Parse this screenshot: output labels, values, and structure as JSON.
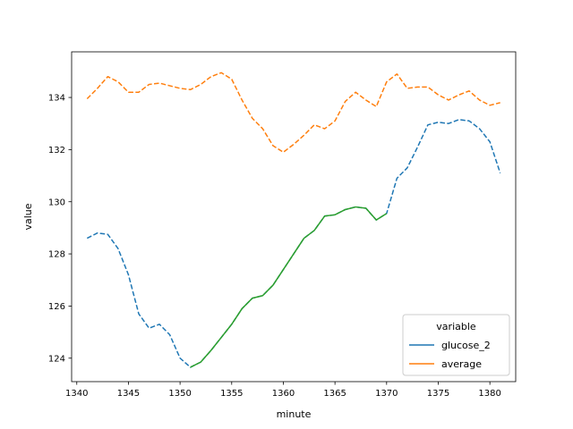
{
  "chart_data": {
    "type": "line",
    "title": "",
    "xlabel": "minute",
    "ylabel": "value",
    "xlim": [
      1339.5,
      1382.5
    ],
    "ylim": [
      123.1,
      135.75
    ],
    "xticks": [
      1340,
      1345,
      1350,
      1355,
      1360,
      1365,
      1370,
      1375,
      1380
    ],
    "yticks": [
      124,
      126,
      128,
      130,
      132,
      134
    ],
    "grid": false,
    "legend": {
      "title": "variable",
      "placement": "lower-right",
      "entries": [
        {
          "name": "glucose_2",
          "color": "#1f77b4"
        },
        {
          "name": "average",
          "color": "#ff7f0e"
        }
      ]
    },
    "series": [
      {
        "name": "glucose_2",
        "color": "#1f77b4",
        "style": "dashed",
        "x": [
          1341,
          1342,
          1343,
          1344,
          1345,
          1346,
          1347,
          1348,
          1349,
          1350,
          1351,
          1352,
          1353,
          1354,
          1355,
          1356,
          1357,
          1358,
          1359,
          1360,
          1361,
          1362,
          1363,
          1364,
          1365,
          1366,
          1367,
          1368,
          1369,
          1370,
          1371,
          1372,
          1373,
          1374,
          1375,
          1376,
          1377,
          1378,
          1379,
          1380,
          1381
        ],
        "values": [
          128.6,
          128.8,
          128.75,
          128.2,
          127.2,
          125.7,
          125.15,
          125.3,
          124.9,
          124.0,
          123.65,
          123.85,
          124.3,
          124.8,
          125.3,
          125.9,
          126.3,
          126.4,
          126.8,
          127.4,
          128.0,
          128.6,
          128.9,
          129.45,
          129.5,
          129.7,
          129.8,
          129.75,
          129.3,
          129.55,
          130.9,
          131.3,
          132.1,
          132.95,
          133.05,
          133.0,
          133.15,
          133.1,
          132.8,
          132.3,
          131.1
        ]
      },
      {
        "name": "average",
        "color": "#ff7f0e",
        "style": "dashed",
        "x": [
          1341,
          1342,
          1343,
          1344,
          1345,
          1346,
          1347,
          1348,
          1349,
          1350,
          1351,
          1352,
          1353,
          1354,
          1355,
          1356,
          1357,
          1358,
          1359,
          1360,
          1361,
          1362,
          1363,
          1364,
          1365,
          1366,
          1367,
          1368,
          1369,
          1370,
          1371,
          1372,
          1373,
          1374,
          1375,
          1376,
          1377,
          1378,
          1379,
          1380,
          1381
        ],
        "values": [
          133.95,
          134.35,
          134.8,
          134.6,
          134.2,
          134.2,
          134.5,
          134.55,
          134.45,
          134.35,
          134.3,
          134.5,
          134.8,
          134.95,
          134.7,
          133.9,
          133.2,
          132.8,
          132.15,
          131.9,
          132.2,
          132.55,
          132.95,
          132.8,
          133.1,
          133.85,
          134.2,
          133.9,
          133.65,
          134.6,
          134.9,
          134.35,
          134.4,
          134.4,
          134.1,
          133.9,
          134.1,
          134.25,
          133.9,
          133.7,
          133.8
        ]
      },
      {
        "name": "",
        "color": "#2ca02c",
        "style": "solid",
        "x": [
          1351,
          1352,
          1353,
          1354,
          1355,
          1356,
          1357,
          1358,
          1359,
          1360,
          1361,
          1362,
          1363,
          1364,
          1365,
          1366,
          1367,
          1368,
          1369,
          1370
        ],
        "values": [
          123.65,
          123.85,
          124.3,
          124.8,
          125.3,
          125.9,
          126.3,
          126.4,
          126.8,
          127.4,
          128.0,
          128.6,
          128.9,
          129.45,
          129.5,
          129.7,
          129.8,
          129.75,
          129.3,
          129.55
        ]
      }
    ]
  }
}
